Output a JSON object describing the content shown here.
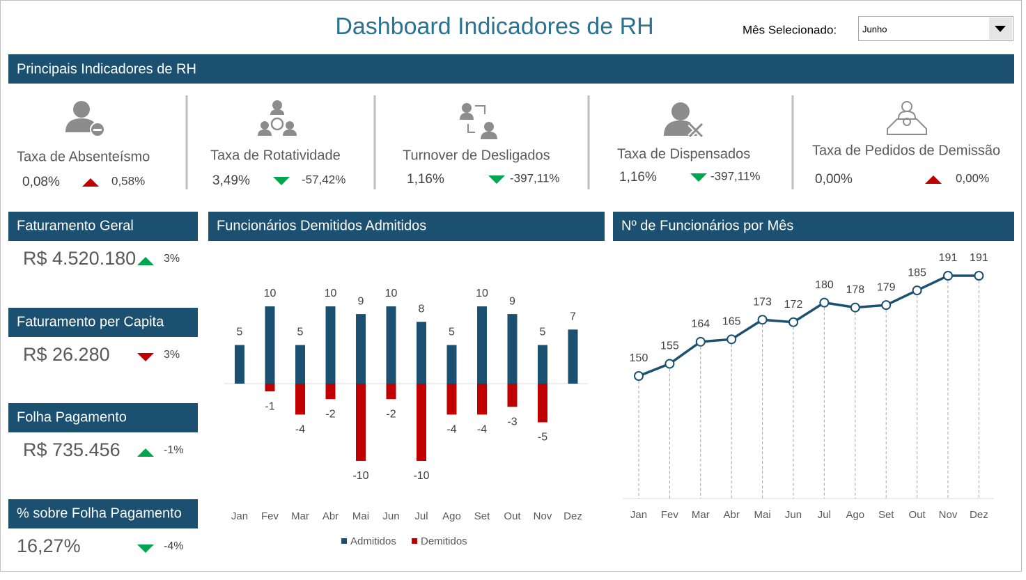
{
  "header": {
    "title": "Dashboard Indicadores de RH",
    "month_label": "Mês Selecionado:",
    "month": "Junho"
  },
  "section_title": "Principais Indicadores de RH",
  "indicators": [
    {
      "label": "Taxa de Absenteísmo",
      "value": "0,08%",
      "change": "0,58%",
      "trend": "up",
      "color": "#c00000"
    },
    {
      "label": "Taxa de Rotatividade",
      "value": "3,49%",
      "change": "-57,42%",
      "trend": "down",
      "color": "#00a550"
    },
    {
      "label": "Turnover de Desligados",
      "value": "1,16%",
      "change": "-397,11%",
      "trend": "down",
      "color": "#00a550"
    },
    {
      "label": "Taxa de Dispensados",
      "value": "1,16%",
      "change": "-397,11%",
      "trend": "down",
      "color": "#00a550"
    },
    {
      "label": "Taxa de Pedidos de Demissão",
      "value": "0,00%",
      "change": "0,00%",
      "trend": "up",
      "color": "#c00000"
    }
  ],
  "cards": [
    {
      "title": "Faturamento Geral",
      "value": "R$ 4.520.180",
      "change": "3%",
      "trend": "up",
      "color": "#00a550"
    },
    {
      "title": "Faturamento per Capita",
      "value": "R$ 26.280",
      "change": "3%",
      "trend": "down",
      "color": "#c00000"
    },
    {
      "title": "Folha Pagamento",
      "value": "R$ 735.456",
      "change": "-1%",
      "trend": "up",
      "color": "#00a550"
    },
    {
      "title": "% sobre Folha Pagamento",
      "value": "16,27%",
      "change": "-4%",
      "trend": "down",
      "color": "#00a550"
    }
  ],
  "chart_data": [
    {
      "type": "bar",
      "title": "Funcionários Demitidos Admitidos",
      "categories": [
        "Jan",
        "Fev",
        "Mar",
        "Abr",
        "Mai",
        "Jun",
        "Jul",
        "Ago",
        "Set",
        "Out",
        "Nov",
        "Dez"
      ],
      "series": [
        {
          "name": "Admitidos",
          "color": "#1b5070",
          "values": [
            5,
            10,
            5,
            10,
            9,
            10,
            8,
            5,
            10,
            9,
            5,
            7
          ]
        },
        {
          "name": "Demitidos",
          "color": "#c00000",
          "values": [
            null,
            -1,
            -4,
            -2,
            -10,
            -2,
            -10,
            -4,
            -4,
            -3,
            -5,
            null
          ]
        }
      ]
    },
    {
      "type": "line",
      "title": "Nº de Funcionários por Mês",
      "categories": [
        "Jan",
        "Fev",
        "Mar",
        "Abr",
        "Mai",
        "Jun",
        "Jul",
        "Ago",
        "Set",
        "Out",
        "Nov",
        "Dez"
      ],
      "color": "#1b5070",
      "values": [
        150,
        155,
        164,
        165,
        173,
        172,
        180,
        178,
        179,
        185,
        191,
        191
      ]
    }
  ]
}
